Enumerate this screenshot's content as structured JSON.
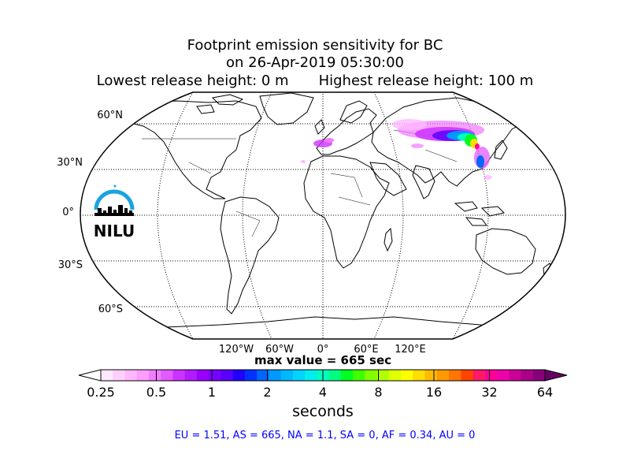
{
  "title": {
    "line1": "Footprint emission sensitivity for BC",
    "line2": "on 26-Apr-2019 05:30:00",
    "lowest": "Lowest release height: 0 m",
    "highest": "Highest release height: 100 m"
  },
  "map": {
    "projection": "robinson",
    "lat_labels": [
      "60°N",
      "30°N",
      "0°",
      "30°S",
      "60°S"
    ],
    "lon_labels": [
      "120°W",
      "60°W",
      "0°",
      "60°E",
      "120°E"
    ],
    "logo_text": "NILU"
  },
  "max_label": "max value = 665 sec",
  "colorbar": {
    "ticks": [
      "0.25",
      "0.5",
      "1",
      "2",
      "4",
      "8",
      "16",
      "32",
      "64"
    ],
    "label": "seconds",
    "colors": [
      "#ffe8ff",
      "#ffd0ff",
      "#ffb8ff",
      "#ff9cff",
      "#f27cff",
      "#e35aff",
      "#cc33ff",
      "#b21aff",
      "#9900ff",
      "#7a00ff",
      "#5a00ff",
      "#2000ff",
      "#0033ff",
      "#0066ff",
      "#0099ff",
      "#00b8ff",
      "#00d4ff",
      "#00eeee",
      "#00ffc0",
      "#00ff80",
      "#00ff20",
      "#40ff00",
      "#80ff00",
      "#b0ff00",
      "#e0ff00",
      "#ffff00",
      "#ffdd00",
      "#ffbb00",
      "#ff9900",
      "#ff7700",
      "#ff4400",
      "#ff1a66",
      "#ff0099",
      "#ee00aa",
      "#cc0099",
      "#aa0088",
      "#880077"
    ]
  },
  "regions": "EU = 1.51,  AS = 665,  NA = 1.1,  SA = 0,  AF = 0.34,  AU = 0"
}
